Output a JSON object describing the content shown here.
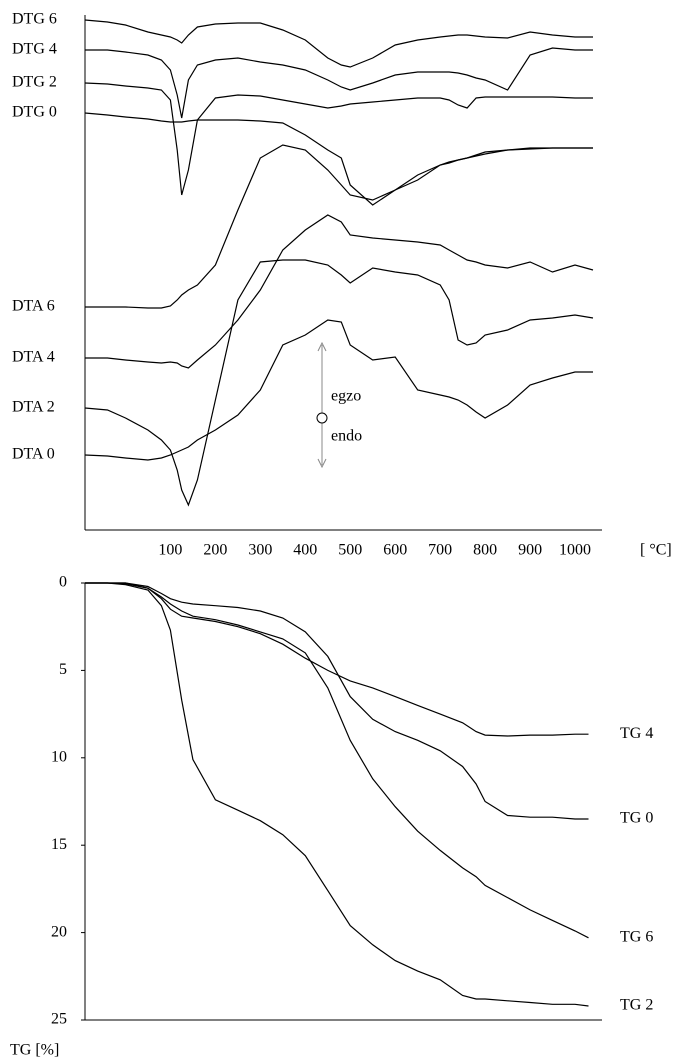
{
  "chart_data": [
    {
      "type": "line",
      "x": [
        -90,
        -40,
        0,
        50,
        80,
        100,
        115,
        125,
        140,
        160,
        200,
        250,
        300,
        350,
        400,
        450,
        480,
        500,
        550,
        600,
        650,
        700,
        720,
        740,
        760,
        780,
        800,
        850,
        900,
        950,
        1000,
        1040
      ],
      "xlim": [
        -90,
        1060
      ],
      "xticks": [
        100,
        200,
        300,
        400,
        500,
        600,
        700,
        800,
        900,
        1000
      ],
      "xlabel": "[ °C]",
      "ylim": [
        0,
        515
      ],
      "legend": "start",
      "annotations": [
        "egzo",
        "endo"
      ],
      "series": [
        {
          "name": "DTG 6",
          "color": "#000000",
          "values": [
            510,
            508,
            505,
            498,
            495,
            493,
            490,
            487,
            495,
            503,
            506,
            507,
            507,
            500,
            490,
            472,
            465,
            463,
            472,
            485,
            490,
            493,
            494,
            495,
            495,
            494,
            493,
            492,
            498,
            495,
            493,
            493
          ]
        },
        {
          "name": "DTG 4",
          "color": "#000000",
          "values": [
            480,
            480,
            478,
            475,
            470,
            460,
            435,
            412,
            450,
            465,
            470,
            472,
            468,
            465,
            460,
            450,
            443,
            440,
            447,
            455,
            458,
            458,
            458,
            457,
            455,
            452,
            450,
            440,
            475,
            482,
            480,
            480
          ]
        },
        {
          "name": "DTG 2",
          "color": "#000000",
          "values": [
            447,
            446,
            444,
            442,
            440,
            430,
            380,
            335,
            360,
            410,
            432,
            435,
            434,
            430,
            426,
            422,
            424,
            426,
            428,
            430,
            432,
            432,
            430,
            425,
            422,
            432,
            433,
            433,
            433,
            433,
            432,
            432
          ]
        },
        {
          "name": "DTG 0",
          "color": "#000000",
          "values": [
            417,
            415,
            413,
            411,
            409,
            408,
            408,
            408,
            409,
            410,
            410,
            410,
            409,
            407,
            395,
            380,
            372,
            345,
            325,
            340,
            355,
            365,
            368,
            370,
            372,
            374,
            376,
            380,
            381,
            382,
            382,
            382
          ]
        },
        {
          "name": "DTA 6",
          "color": "#000000",
          "values": [
            223,
            223,
            223,
            222,
            222,
            224,
            230,
            235,
            240,
            245,
            265,
            320,
            372,
            385,
            380,
            360,
            345,
            335,
            330,
            340,
            350,
            365,
            367,
            370,
            372,
            375,
            378,
            380,
            382,
            382,
            382,
            382
          ]
        },
        {
          "name": "DTA 4",
          "color": "#000000",
          "values": [
            172,
            172,
            170,
            168,
            167,
            168,
            167,
            164,
            162,
            170,
            185,
            210,
            240,
            280,
            300,
            315,
            308,
            295,
            292,
            290,
            288,
            285,
            280,
            275,
            270,
            268,
            265,
            262,
            268,
            258,
            265,
            260
          ]
        },
        {
          "name": "DTA 2",
          "color": "#000000",
          "values": [
            122,
            120,
            112,
            100,
            90,
            80,
            60,
            40,
            25,
            50,
            130,
            230,
            268,
            270,
            270,
            265,
            255,
            247,
            262,
            258,
            255,
            245,
            230,
            190,
            185,
            187,
            195,
            200,
            210,
            212,
            215,
            212
          ]
        },
        {
          "name": "DTA 0",
          "color": "#000000",
          "values": [
            75,
            74,
            72,
            70,
            72,
            75,
            78,
            80,
            83,
            90,
            100,
            115,
            140,
            185,
            195,
            210,
            208,
            185,
            170,
            173,
            140,
            135,
            133,
            130,
            125,
            118,
            112,
            125,
            145,
            152,
            158,
            158
          ]
        }
      ]
    },
    {
      "type": "line",
      "x": [
        -90,
        -40,
        0,
        50,
        80,
        100,
        125,
        150,
        200,
        250,
        300,
        350,
        400,
        450,
        500,
        550,
        600,
        650,
        700,
        750,
        780,
        800,
        850,
        900,
        950,
        1000,
        1030
      ],
      "xlim": [
        -90,
        1060
      ],
      "ylim": [
        25,
        0
      ],
      "yticks": [
        0,
        5,
        10,
        15,
        20,
        25
      ],
      "ylabel": "TG [%]",
      "legend": "end",
      "series": [
        {
          "name": "TG 4",
          "color": "#000000",
          "values": [
            0,
            0,
            0,
            0.3,
            0.9,
            1.5,
            1.9,
            2.0,
            2.2,
            2.5,
            2.9,
            3.5,
            4.3,
            5.0,
            5.6,
            6.0,
            6.5,
            7.0,
            7.5,
            8.0,
            8.5,
            8.7,
            8.75,
            8.7,
            8.7,
            8.65,
            8.65
          ]
        },
        {
          "name": "TG 0",
          "color": "#000000",
          "values": [
            0,
            0,
            0,
            0.2,
            0.6,
            0.9,
            1.1,
            1.2,
            1.3,
            1.4,
            1.6,
            2.0,
            2.8,
            4.2,
            6.5,
            7.8,
            8.5,
            9.0,
            9.6,
            10.5,
            11.5,
            12.5,
            13.3,
            13.4,
            13.4,
            13.5,
            13.5
          ]
        },
        {
          "name": "TG 6",
          "color": "#000000",
          "values": [
            0,
            0,
            0.05,
            0.3,
            0.8,
            1.2,
            1.6,
            1.9,
            2.1,
            2.4,
            2.8,
            3.2,
            4.0,
            6.0,
            9.0,
            11.2,
            12.8,
            14.2,
            15.3,
            16.3,
            16.8,
            17.3,
            18.0,
            18.7,
            19.3,
            19.9,
            20.3
          ]
        },
        {
          "name": "TG 2",
          "color": "#000000",
          "values": [
            0,
            0,
            0.1,
            0.4,
            1.3,
            2.7,
            6.7,
            10.1,
            12.4,
            13.0,
            13.6,
            14.4,
            15.6,
            17.6,
            19.6,
            20.7,
            21.6,
            22.2,
            22.7,
            23.6,
            23.8,
            23.8,
            23.9,
            24.0,
            24.1,
            24.1,
            24.2
          ]
        }
      ]
    }
  ]
}
